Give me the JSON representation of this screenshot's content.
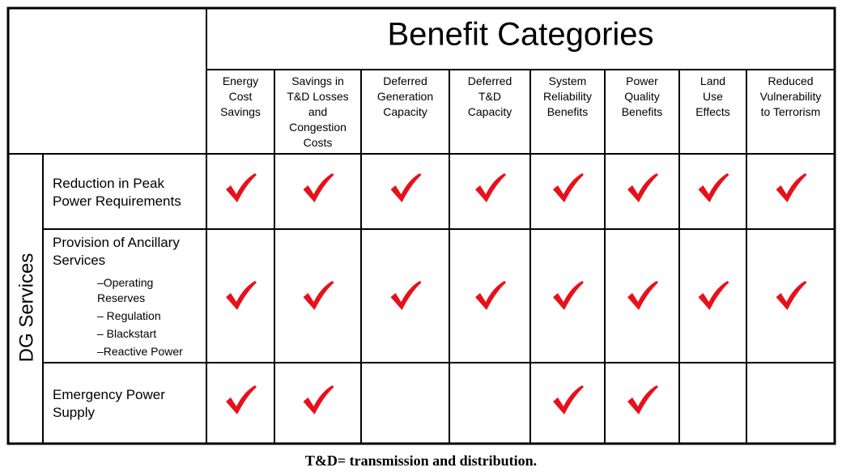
{
  "header": {
    "title": "Benefit Categories",
    "columns": [
      [
        "Energy",
        "Cost",
        "Savings"
      ],
      [
        "Savings in",
        "T&D Losses",
        "and",
        "Congestion",
        "Costs"
      ],
      [
        "Deferred",
        "Generation",
        "Capacity"
      ],
      [
        "Deferred",
        "T&D",
        "Capacity"
      ],
      [
        "System",
        "Reliability",
        "Benefits"
      ],
      [
        "Power",
        "Quality",
        "Benefits"
      ],
      [
        "Land",
        "Use",
        "Effects"
      ],
      [
        "Reduced",
        "Vulnerability",
        "to Terrorism"
      ]
    ]
  },
  "group_label": "DG Services",
  "rows": [
    {
      "label": [
        "Reduction in Peak",
        "Power Requirements"
      ],
      "checks": [
        true,
        true,
        true,
        true,
        true,
        true,
        true,
        true
      ]
    },
    {
      "label": [
        "Provision of Ancillary",
        "Services"
      ],
      "subitems": [
        [
          "–Operating",
          "Reserves"
        ],
        [
          "– Regulation"
        ],
        [
          "– Blackstart"
        ],
        [
          "–Reactive Power"
        ]
      ],
      "checks": [
        true,
        true,
        true,
        true,
        true,
        true,
        true,
        true
      ]
    },
    {
      "label": [
        "Emergency Power",
        "Supply"
      ],
      "checks": [
        true,
        true,
        false,
        false,
        true,
        true,
        false,
        false
      ]
    }
  ],
  "caption": "T&D= transmission and distribution."
}
